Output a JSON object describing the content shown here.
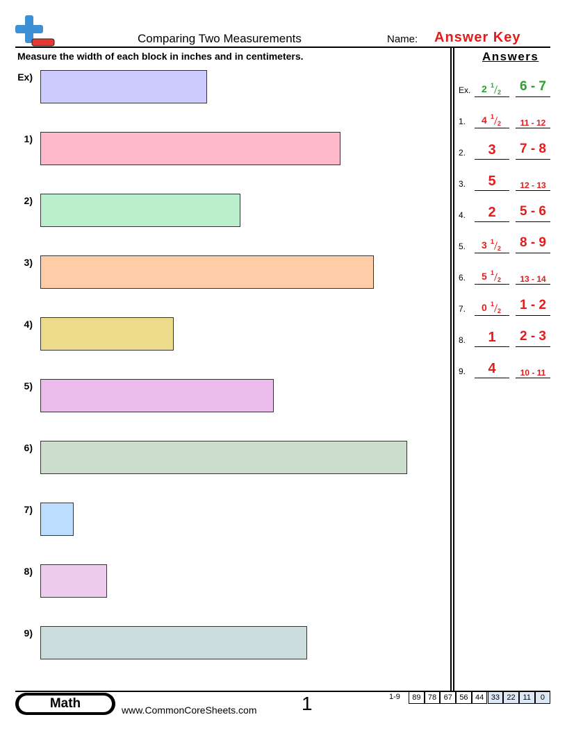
{
  "header": {
    "title": "Comparing Two Measurements",
    "name_label": "Name:",
    "name_value": "Answer Key"
  },
  "instructions": "Measure the width of each block in inches and in centimeters.",
  "problems": [
    "Ex)",
    "1)",
    "2)",
    "3)",
    "4)",
    "5)",
    "6)",
    "7)",
    "8)",
    "9)"
  ],
  "answers": {
    "title": "Answers",
    "rows": [
      {
        "label": "Ex.",
        "inches": {
          "whole": "2",
          "num": "1",
          "den": "2"
        },
        "cm": "6 - 7"
      },
      {
        "label": "1.",
        "inches": {
          "whole": "4",
          "num": "1",
          "den": "2"
        },
        "cm": "11 - 12"
      },
      {
        "label": "2.",
        "inches": "3",
        "cm": "7 - 8"
      },
      {
        "label": "3.",
        "inches": "5",
        "cm": "12 - 13"
      },
      {
        "label": "4.",
        "inches": "2",
        "cm": "5 - 6"
      },
      {
        "label": "5.",
        "inches": {
          "whole": "3",
          "num": "1",
          "den": "2"
        },
        "cm": "8 - 9"
      },
      {
        "label": "6.",
        "inches": {
          "whole": "5",
          "num": "1",
          "den": "2"
        },
        "cm": "13 - 14"
      },
      {
        "label": "7.",
        "inches": {
          "whole": "0",
          "num": "1",
          "den": "2"
        },
        "cm": "1 - 2"
      },
      {
        "label": "8.",
        "inches": "1",
        "cm": "2 - 3"
      },
      {
        "label": "9.",
        "inches": "4",
        "cm": "10 - 11"
      }
    ]
  },
  "footer": {
    "subject": "Math",
    "website": "www.CommonCoreSheets.com",
    "page": "1",
    "score_label": "1-9",
    "scores": [
      89,
      78,
      67,
      56,
      44,
      33,
      22,
      11,
      0
    ]
  }
}
